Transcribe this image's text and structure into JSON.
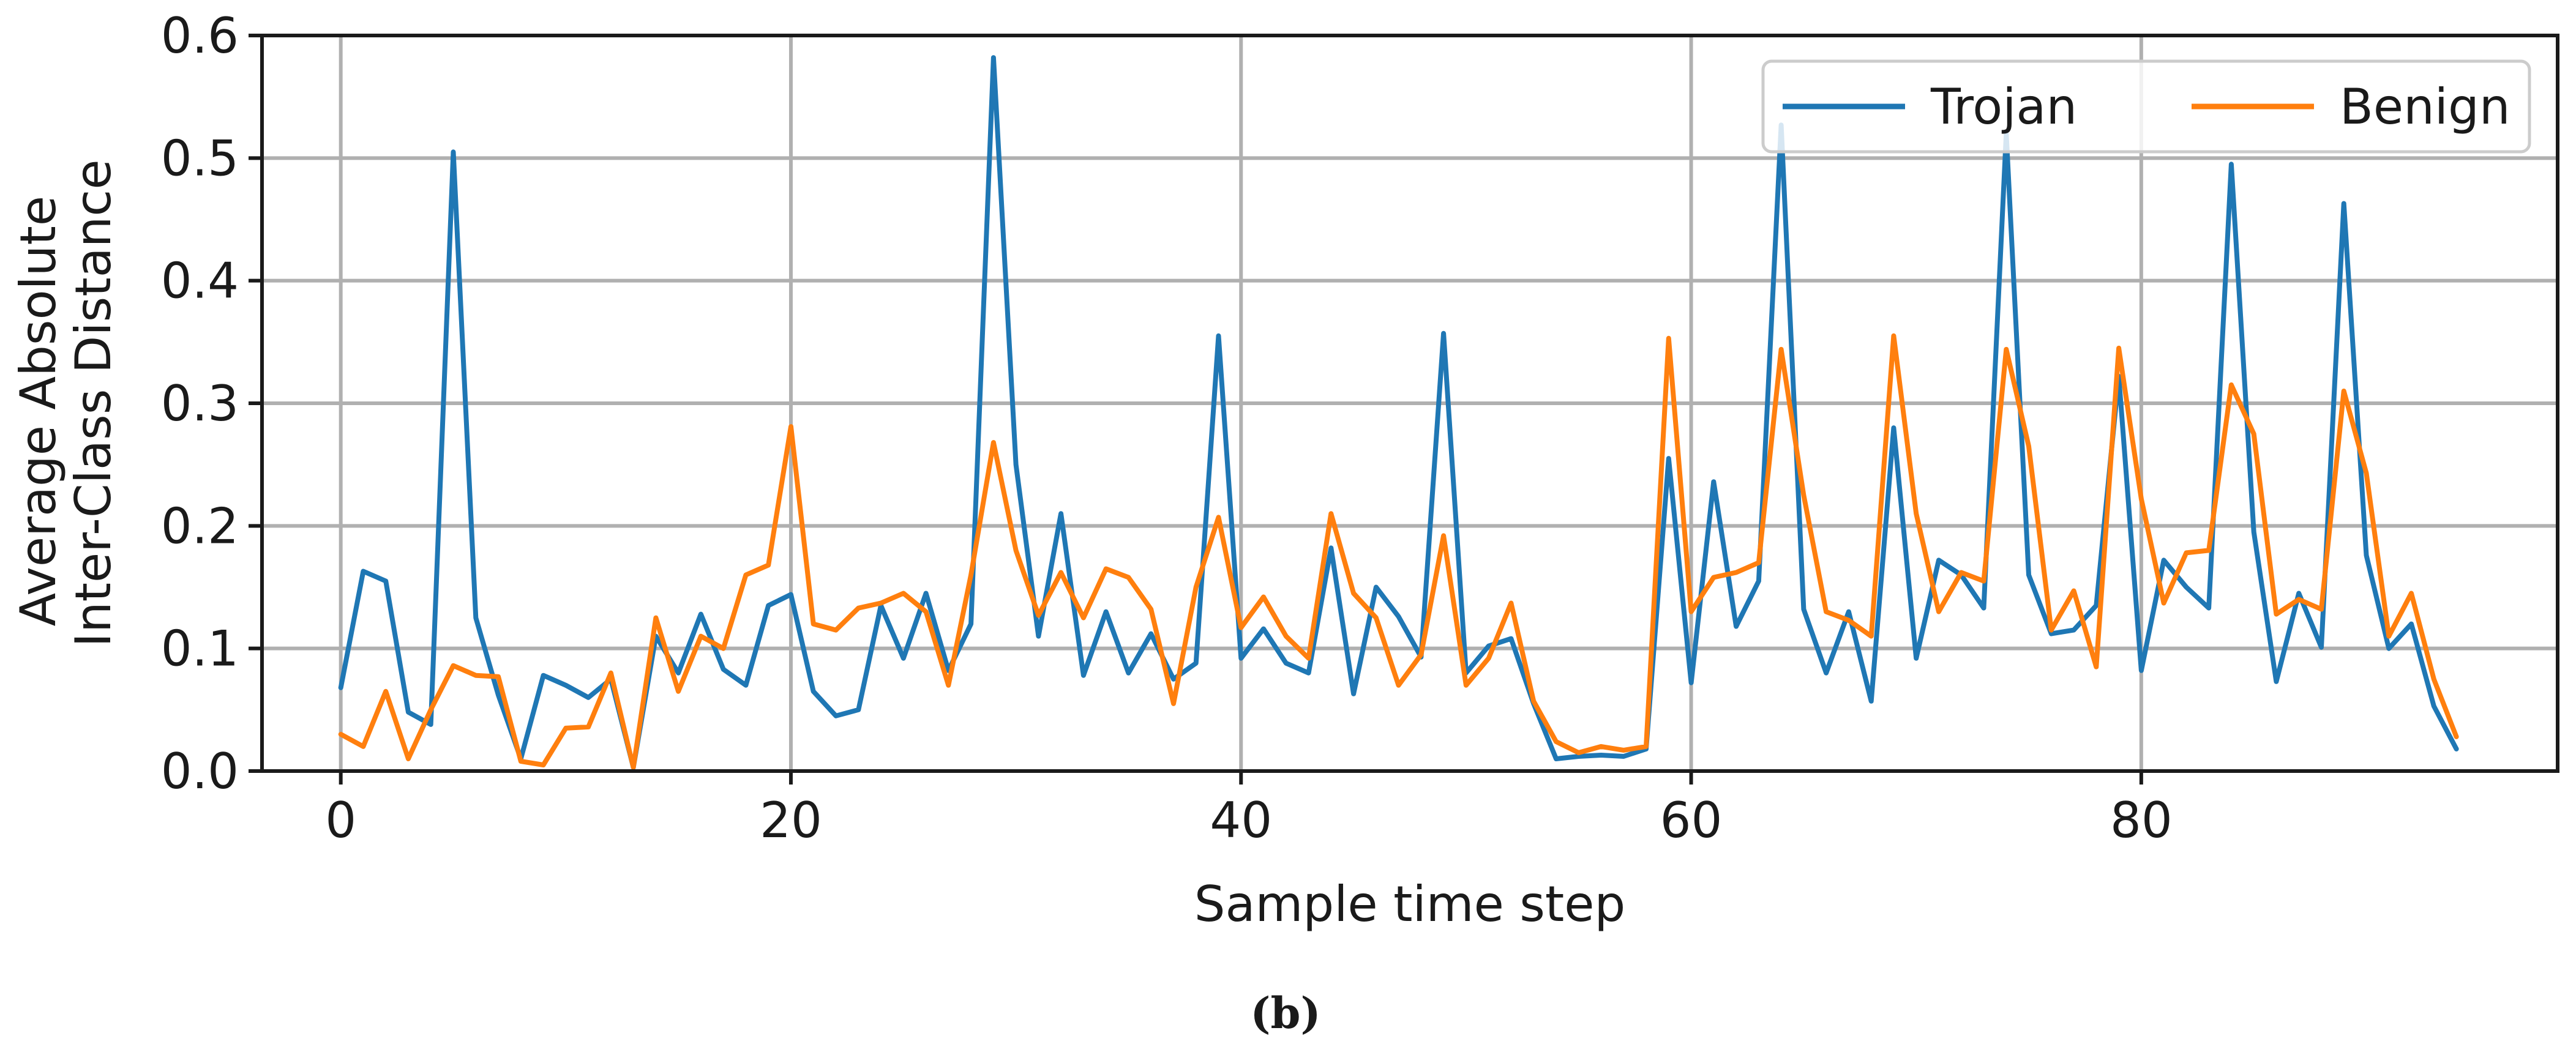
{
  "chart_data": {
    "type": "line",
    "xlabel": "Sample time step",
    "ylabel_lines": [
      "Average Absolute",
      "Inter-Class Distance"
    ],
    "caption": "(b)",
    "xlim": [
      -3.5,
      98.5
    ],
    "ylim": [
      0.0,
      0.6
    ],
    "xticks": [
      0,
      20,
      40,
      60,
      80
    ],
    "xtick_labels": [
      "0",
      "20",
      "40",
      "60",
      "80"
    ],
    "yticks": [
      0.0,
      0.1,
      0.2,
      0.3,
      0.4,
      0.5,
      0.6
    ],
    "ytick_labels": [
      "0.0",
      "0.1",
      "0.2",
      "0.3",
      "0.4",
      "0.5",
      "0.6"
    ],
    "grid": true,
    "legend_position": "top-right",
    "series": [
      {
        "name": "Trojan",
        "color": "#1f77b4",
        "values": [
          0.068,
          0.163,
          0.155,
          0.048,
          0.038,
          0.505,
          0.125,
          0.062,
          0.01,
          0.078,
          0.07,
          0.06,
          0.075,
          0.003,
          0.11,
          0.08,
          0.128,
          0.083,
          0.07,
          0.135,
          0.144,
          0.065,
          0.045,
          0.05,
          0.135,
          0.092,
          0.145,
          0.082,
          0.12,
          0.582,
          0.25,
          0.11,
          0.21,
          0.078,
          0.13,
          0.08,
          0.112,
          0.075,
          0.088,
          0.355,
          0.092,
          0.116,
          0.088,
          0.08,
          0.182,
          0.063,
          0.15,
          0.126,
          0.093,
          0.357,
          0.08,
          0.102,
          0.108,
          0.055,
          0.01,
          0.012,
          0.013,
          0.012,
          0.018,
          0.255,
          0.072,
          0.236,
          0.118,
          0.155,
          0.527,
          0.132,
          0.08,
          0.13,
          0.057,
          0.28,
          0.092,
          0.172,
          0.16,
          0.133,
          0.52,
          0.16,
          0.112,
          0.115,
          0.135,
          0.322,
          0.082,
          0.172,
          0.15,
          0.133,
          0.495,
          0.195,
          0.073,
          0.145,
          0.101,
          0.463,
          0.176,
          0.1,
          0.12,
          0.053,
          0.018
        ]
      },
      {
        "name": "Benign",
        "color": "#ff7f0e",
        "values": [
          0.03,
          0.02,
          0.065,
          0.01,
          0.05,
          0.086,
          0.078,
          0.077,
          0.008,
          0.005,
          0.035,
          0.036,
          0.08,
          0.003,
          0.125,
          0.065,
          0.11,
          0.1,
          0.16,
          0.168,
          0.281,
          0.12,
          0.115,
          0.133,
          0.137,
          0.145,
          0.13,
          0.07,
          0.16,
          0.268,
          0.18,
          0.127,
          0.162,
          0.125,
          0.165,
          0.158,
          0.132,
          0.055,
          0.15,
          0.207,
          0.117,
          0.142,
          0.11,
          0.092,
          0.21,
          0.145,
          0.125,
          0.07,
          0.095,
          0.192,
          0.07,
          0.092,
          0.137,
          0.057,
          0.024,
          0.015,
          0.02,
          0.017,
          0.02,
          0.353,
          0.13,
          0.158,
          0.162,
          0.17,
          0.344,
          0.225,
          0.13,
          0.123,
          0.11,
          0.355,
          0.21,
          0.13,
          0.162,
          0.155,
          0.344,
          0.265,
          0.115,
          0.147,
          0.085,
          0.345,
          0.222,
          0.137,
          0.178,
          0.18,
          0.315,
          0.275,
          0.128,
          0.14,
          0.132,
          0.31,
          0.243,
          0.11,
          0.145,
          0.075,
          0.028
        ]
      }
    ]
  }
}
